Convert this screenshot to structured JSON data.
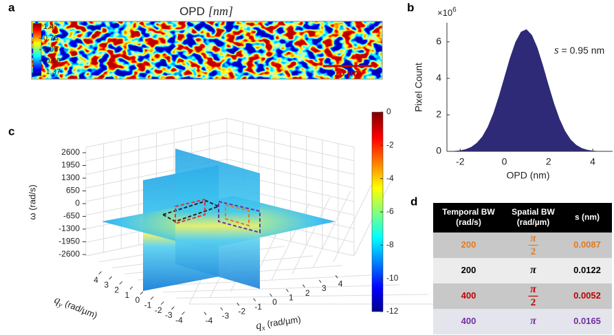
{
  "panel_a": {
    "label": "a",
    "title": "OPD",
    "title_unit": "[nm]",
    "colorbar_ticks": [
      1.47,
      0.76,
      0.05,
      -0.66,
      -1.37
    ],
    "clim": [
      -1.6,
      1.7
    ],
    "scale_bar": "10 µm"
  },
  "chart_data": {
    "type": "area",
    "panel_label": "b",
    "color": "#2e2a78",
    "y_label": "Pixel Count",
    "x_label": "OPD (nm)",
    "y_multiplier": "×10",
    "y_multiplier_exp": "6",
    "annotation_symbol": "s",
    "annotation_text": " = 0.95 nm",
    "x": [
      -2.5,
      -2.25,
      -2,
      -1.75,
      -1.5,
      -1.25,
      -1,
      -0.75,
      -0.5,
      -0.25,
      0,
      0.25,
      0.5,
      0.75,
      1,
      1.25,
      1.5,
      1.75,
      2,
      2.25,
      2.5,
      2.75,
      3,
      3.25,
      3.5,
      3.75,
      4,
      4.25,
      4.5
    ],
    "values": [
      0.009,
      0.023,
      0.054,
      0.118,
      0.24,
      0.46,
      0.81,
      1.35,
      2.09,
      3.02,
      4.06,
      5.11,
      5.99,
      6.55,
      6.69,
      6.37,
      5.67,
      4.7,
      3.64,
      2.63,
      1.77,
      1.11,
      0.65,
      0.36,
      0.18,
      0.087,
      0.039,
      0.016,
      0.006
    ],
    "xlim": [
      -2.6,
      4.9
    ],
    "ylim": [
      0,
      7.05
    ],
    "xticks": [
      -2,
      0,
      2,
      4
    ],
    "yticks": [
      0,
      2,
      4,
      6
    ]
  },
  "panel_c": {
    "label": "c",
    "z_label": "ω (rad/s)",
    "z_ticks": [
      2600,
      1950,
      1300,
      650,
      0,
      -650,
      -1300,
      -1950,
      -2600
    ],
    "zlim": [
      -2600,
      2600
    ],
    "qy_symbol": "q",
    "qy_sub": "y",
    "qy_unit": " (rad/µm)",
    "qy_ticks": [
      4,
      3,
      2,
      1,
      0,
      -1,
      -2,
      -3,
      -4
    ],
    "qx_symbol": "q",
    "qx_sub": "x",
    "qx_unit": " (rad/µm)",
    "qx_ticks": [
      -4,
      -3,
      -2,
      -1,
      0,
      1,
      2,
      3,
      4
    ],
    "qlim": [
      -4.5,
      4.5
    ],
    "colorbar_ticks": [
      0,
      -2,
      -4,
      -6,
      -8,
      -10,
      -12
    ],
    "clim": [
      -12,
      0
    ]
  },
  "panel_d": {
    "label": "d",
    "header": [
      [
        "Temporal BW",
        "(rad/s)"
      ],
      [
        "Spatial BW",
        "(rad/µm)"
      ],
      [
        "s (nm)"
      ]
    ],
    "rows": [
      {
        "color": "#e07b20",
        "background": "#c8c8c8",
        "cells": [
          200,
          {
            "num": "π",
            "den": "2"
          },
          0.0087
        ]
      },
      {
        "color": "#000000",
        "background": "#ececec",
        "cells": [
          200,
          "π",
          0.0122
        ]
      },
      {
        "color": "#c00000",
        "background": "#c8c8c8",
        "cells": [
          400,
          {
            "num": "π",
            "den": "2"
          },
          0.0052
        ]
      },
      {
        "color": "#7030a0",
        "background": "#e4e4ec",
        "cells": [
          400,
          "π",
          0.0165
        ]
      }
    ]
  }
}
